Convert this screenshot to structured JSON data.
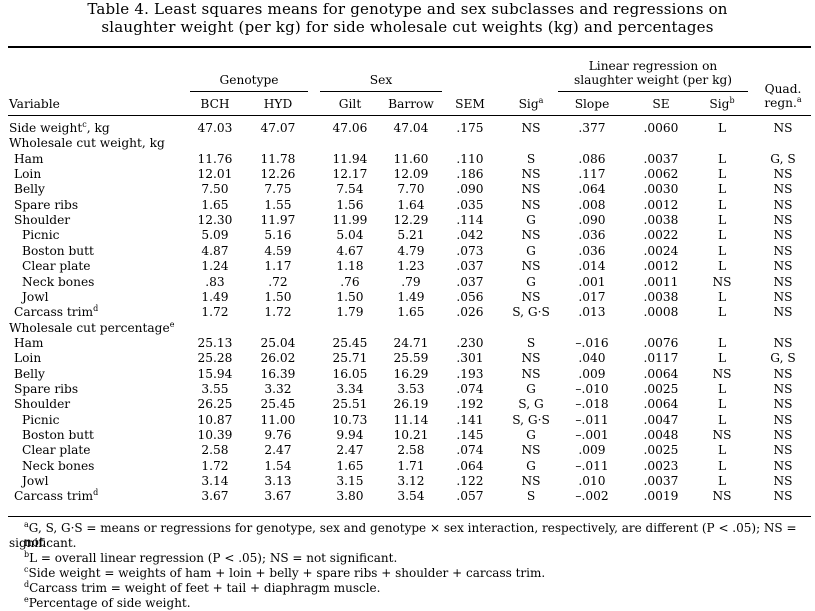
{
  "title": {
    "line1": "Table 4. Least squares means for genotype and sex subclasses and regressions on",
    "line2": "slaughter weight (per kg) for side wholesale cut weights (kg) and percentages"
  },
  "header": {
    "genotype": "Genotype",
    "sex": "Sex",
    "linreg_line1": "Linear regression on",
    "linreg_line2": "slaughter weight (per kg)",
    "quad_line1": "Quad.",
    "quad_line2": "regn.",
    "quad_sup": "a",
    "variable": "Variable",
    "bch": "BCH",
    "hyd": "HYD",
    "gilt": "Gilt",
    "barrow": "Barrow",
    "sem": "SEM",
    "sig": "Sig",
    "sig_sup": "a",
    "slope": "Slope",
    "se": "SE",
    "sig2": "Sig",
    "sig2_sup": "b"
  },
  "rows": [
    {
      "label": "Side weight",
      "sup": "c",
      "suffix": ", kg",
      "indent": 0,
      "values": [
        "47.03",
        "47.07",
        "47.06",
        "47.04",
        ".175",
        "NS",
        ".377",
        ".0060",
        "L",
        "NS"
      ]
    },
    {
      "label": "Wholesale cut weight, kg",
      "indent": 0,
      "values": []
    },
    {
      "label": "Ham",
      "indent": 1,
      "values": [
        "11.76",
        "11.78",
        "11.94",
        "11.60",
        ".110",
        "S",
        ".086",
        ".0037",
        "L",
        "G, S"
      ]
    },
    {
      "label": "Loin",
      "indent": 1,
      "values": [
        "12.01",
        "12.26",
        "12.17",
        "12.09",
        ".186",
        "NS",
        ".117",
        ".0062",
        "L",
        "NS"
      ]
    },
    {
      "label": "Belly",
      "indent": 1,
      "values": [
        "7.50",
        "7.75",
        "7.54",
        "7.70",
        ".090",
        "NS",
        ".064",
        ".0030",
        "L",
        "NS"
      ]
    },
    {
      "label": "Spare ribs",
      "indent": 1,
      "values": [
        "1.65",
        "1.55",
        "1.56",
        "1.64",
        ".035",
        "NS",
        ".008",
        ".0012",
        "L",
        "NS"
      ]
    },
    {
      "label": "Shoulder",
      "indent": 1,
      "values": [
        "12.30",
        "11.97",
        "11.99",
        "12.29",
        ".114",
        "G",
        ".090",
        ".0038",
        "L",
        "NS"
      ]
    },
    {
      "label": "Picnic",
      "indent": 2,
      "values": [
        "5.09",
        "5.16",
        "5.04",
        "5.21",
        ".042",
        "NS",
        ".036",
        ".0022",
        "L",
        "NS"
      ]
    },
    {
      "label": "Boston butt",
      "indent": 2,
      "values": [
        "4.87",
        "4.59",
        "4.67",
        "4.79",
        ".073",
        "G",
        ".036",
        ".0024",
        "L",
        "NS"
      ]
    },
    {
      "label": "Clear plate",
      "indent": 2,
      "values": [
        "1.24",
        "1.17",
        "1.18",
        "1.23",
        ".037",
        "NS",
        ".014",
        ".0012",
        "L",
        "NS"
      ]
    },
    {
      "label": "Neck bones",
      "indent": 2,
      "values": [
        ".83",
        ".72",
        ".76",
        ".79",
        ".037",
        "G",
        ".001",
        ".0011",
        "NS",
        "NS"
      ]
    },
    {
      "label": "Jowl",
      "indent": 2,
      "values": [
        "1.49",
        "1.50",
        "1.50",
        "1.49",
        ".056",
        "NS",
        ".017",
        ".0038",
        "L",
        "NS"
      ]
    },
    {
      "label": "Carcass trim",
      "sup": "d",
      "indent": 1,
      "values": [
        "1.72",
        "1.72",
        "1.79",
        "1.65",
        ".026",
        "S, G·S",
        ".013",
        ".0008",
        "L",
        "NS"
      ]
    },
    {
      "label": "Wholesale cut percentage",
      "sup": "e",
      "indent": 0,
      "values": []
    },
    {
      "label": "Ham",
      "indent": 1,
      "values": [
        "25.13",
        "25.04",
        "25.45",
        "24.71",
        ".230",
        "S",
        "–.016",
        ".0076",
        "L",
        "NS"
      ]
    },
    {
      "label": "Loin",
      "indent": 1,
      "values": [
        "25.28",
        "26.02",
        "25.71",
        "25.59",
        ".301",
        "NS",
        ".040",
        ".0117",
        "L",
        "G, S"
      ]
    },
    {
      "label": "Belly",
      "indent": 1,
      "values": [
        "15.94",
        "16.39",
        "16.05",
        "16.29",
        ".193",
        "NS",
        ".009",
        ".0064",
        "NS",
        "NS"
      ]
    },
    {
      "label": "Spare ribs",
      "indent": 1,
      "values": [
        "3.55",
        "3.32",
        "3.34",
        "3.53",
        ".074",
        "G",
        "–.010",
        ".0025",
        "L",
        "NS"
      ]
    },
    {
      "label": "Shoulder",
      "indent": 1,
      "values": [
        "26.25",
        "25.45",
        "25.51",
        "26.19",
        ".192",
        "S, G",
        "–.018",
        ".0064",
        "L",
        "NS"
      ]
    },
    {
      "label": "Picnic",
      "indent": 2,
      "values": [
        "10.87",
        "11.00",
        "10.73",
        "11.14",
        ".141",
        "S, G·S",
        "–.011",
        ".0047",
        "L",
        "NS"
      ]
    },
    {
      "label": "Boston butt",
      "indent": 2,
      "values": [
        "10.39",
        "9.76",
        "9.94",
        "10.21",
        ".145",
        "G",
        "–.001",
        ".0048",
        "NS",
        "NS"
      ]
    },
    {
      "label": "Clear plate",
      "indent": 2,
      "values": [
        "2.58",
        "2.47",
        "2.47",
        "2.58",
        ".074",
        "NS",
        ".009",
        ".0025",
        "L",
        "NS"
      ]
    },
    {
      "label": "Neck bones",
      "indent": 2,
      "values": [
        "1.72",
        "1.54",
        "1.65",
        "1.71",
        ".064",
        "G",
        "–.011",
        ".0023",
        "L",
        "NS"
      ]
    },
    {
      "label": "Jowl",
      "indent": 2,
      "values": [
        "3.14",
        "3.13",
        "3.15",
        "3.12",
        ".122",
        "NS",
        ".010",
        ".0037",
        "L",
        "NS"
      ]
    },
    {
      "label": "Carcass trim",
      "sup": "d",
      "indent": 1,
      "values": [
        "3.67",
        "3.67",
        "3.80",
        "3.54",
        ".057",
        "S",
        "–.002",
        ".0019",
        "NS",
        "NS"
      ]
    }
  ],
  "footnotes": [
    {
      "sup": "a",
      "lines": [
        "G, S, G·S = means or regressions for genotype, sex and genotype × sex interaction, respectively, are different (P < .05); NS = not",
        "significant."
      ]
    },
    {
      "sup": "b",
      "lines": [
        "L = overall linear regression (P < .05); NS = not significant."
      ]
    },
    {
      "sup": "c",
      "lines": [
        "Side weight = weights of ham + loin + belly + spare ribs + shoulder + carcass trim."
      ]
    },
    {
      "sup": "d",
      "lines": [
        "Carcass trim = weight of feet + tail + diaphragm muscle."
      ]
    },
    {
      "sup": "e",
      "lines": [
        "Percentage of side weight."
      ]
    }
  ]
}
